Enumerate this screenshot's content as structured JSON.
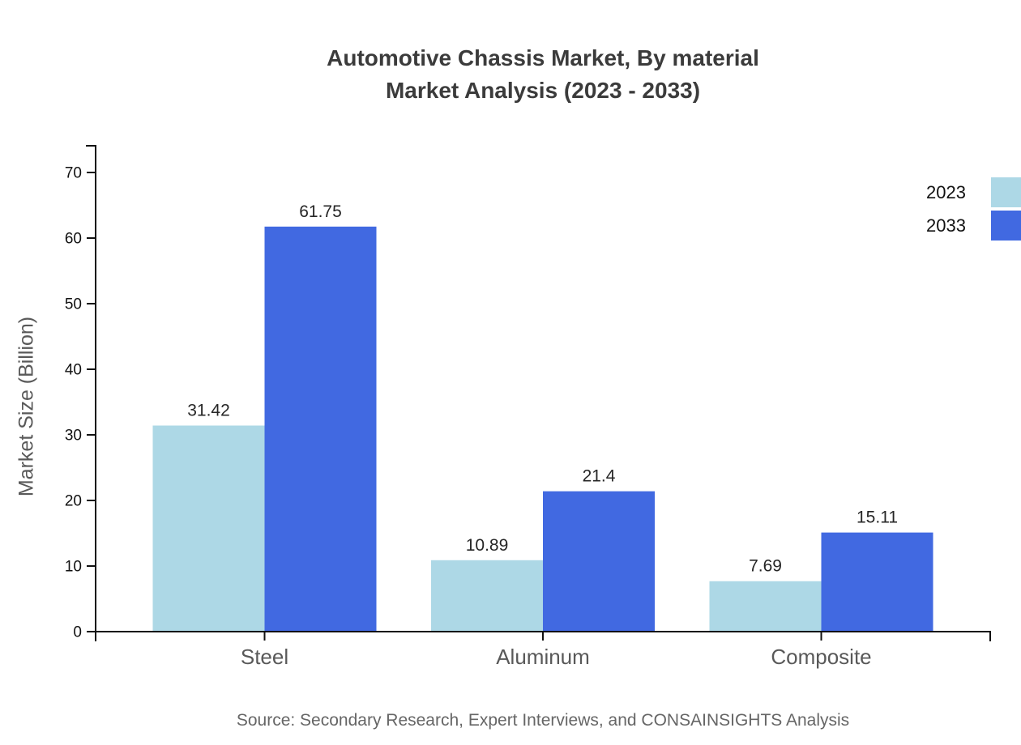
{
  "title": {
    "line1": "Automotive Chassis Market, By material",
    "line2": "Market Analysis (2023 - 2033)"
  },
  "source": "Source: Secondary Research, Expert Interviews, and CONSAINSIGHTS Analysis",
  "chart_data": {
    "type": "bar",
    "categories": [
      "Steel",
      "Aluminum",
      "Composite"
    ],
    "series": [
      {
        "name": "2023",
        "color": "#add8e6",
        "values": [
          31.42,
          10.89,
          7.69
        ]
      },
      {
        "name": "2033",
        "color": "#4169e1",
        "values": [
          61.75,
          21.4,
          15.11
        ]
      }
    ],
    "title": "Automotive Chassis Market, By material Market Analysis (2023 - 2033)",
    "xlabel": "",
    "ylabel": "Market Size (Billion)",
    "ylim": [
      0,
      70
    ],
    "yticks": [
      0,
      10,
      20,
      30,
      40,
      50,
      60,
      70
    ],
    "grid": false,
    "legend_position": "top-right",
    "axis_color": "#111111",
    "value_label_color": "#262626",
    "category_label_color": "#595959"
  }
}
